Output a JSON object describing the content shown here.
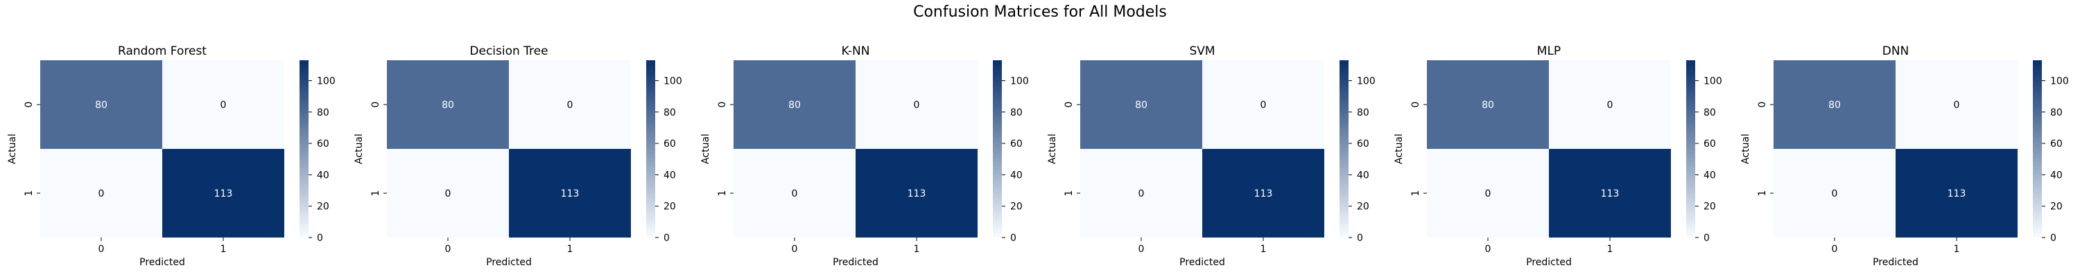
{
  "figure": {
    "title": "Confusion Matrices for All Models"
  },
  "colors": {
    "low": "#f7fbff",
    "high": "#08306b",
    "text_dark": "#000000",
    "text_light": "#ffffff"
  },
  "chart_data": [
    {
      "type": "heatmap",
      "title": "Random Forest",
      "xlabel": "Predicted",
      "ylabel": "Actual",
      "x_categories": [
        "0",
        "1"
      ],
      "y_categories": [
        "0",
        "1"
      ],
      "values": [
        [
          80,
          0
        ],
        [
          0,
          113
        ]
      ],
      "colorbar": {
        "range": [
          0,
          113
        ],
        "ticks": [
          "0",
          "20",
          "40",
          "60",
          "80",
          "100"
        ]
      }
    },
    {
      "type": "heatmap",
      "title": "Decision Tree",
      "xlabel": "Predicted",
      "ylabel": "Actual",
      "x_categories": [
        "0",
        "1"
      ],
      "y_categories": [
        "0",
        "1"
      ],
      "values": [
        [
          80,
          0
        ],
        [
          0,
          113
        ]
      ],
      "colorbar": {
        "range": [
          0,
          113
        ],
        "ticks": [
          "0",
          "20",
          "40",
          "60",
          "80",
          "100"
        ]
      }
    },
    {
      "type": "heatmap",
      "title": "K-NN",
      "xlabel": "Predicted",
      "ylabel": "Actual",
      "x_categories": [
        "0",
        "1"
      ],
      "y_categories": [
        "0",
        "1"
      ],
      "values": [
        [
          80,
          0
        ],
        [
          0,
          113
        ]
      ],
      "colorbar": {
        "range": [
          0,
          113
        ],
        "ticks": [
          "0",
          "20",
          "40",
          "60",
          "80",
          "100"
        ]
      }
    },
    {
      "type": "heatmap",
      "title": "SVM",
      "xlabel": "Predicted",
      "ylabel": "Actual",
      "x_categories": [
        "0",
        "1"
      ],
      "y_categories": [
        "0",
        "1"
      ],
      "values": [
        [
          80,
          0
        ],
        [
          0,
          113
        ]
      ],
      "colorbar": {
        "range": [
          0,
          113
        ],
        "ticks": [
          "0",
          "20",
          "40",
          "60",
          "80",
          "100"
        ]
      }
    },
    {
      "type": "heatmap",
      "title": "MLP",
      "xlabel": "Predicted",
      "ylabel": "Actual",
      "x_categories": [
        "0",
        "1"
      ],
      "y_categories": [
        "0",
        "1"
      ],
      "values": [
        [
          80,
          0
        ],
        [
          0,
          113
        ]
      ],
      "colorbar": {
        "range": [
          0,
          113
        ],
        "ticks": [
          "0",
          "20",
          "40",
          "60",
          "80",
          "100"
        ]
      }
    },
    {
      "type": "heatmap",
      "title": "DNN",
      "xlabel": "Predicted",
      "ylabel": "Actual",
      "x_categories": [
        "0",
        "1"
      ],
      "y_categories": [
        "0",
        "1"
      ],
      "values": [
        [
          80,
          0
        ],
        [
          0,
          113
        ]
      ],
      "colorbar": {
        "range": [
          0,
          113
        ],
        "ticks": [
          "0",
          "20",
          "40",
          "60",
          "80",
          "100"
        ]
      }
    }
  ]
}
